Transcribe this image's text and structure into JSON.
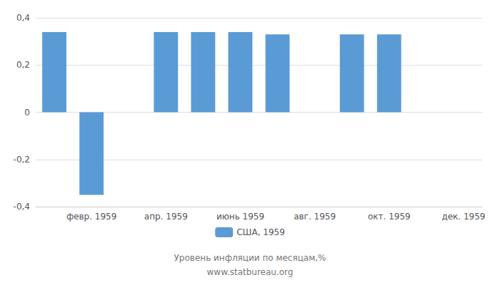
{
  "chart_data": {
    "type": "bar",
    "categories": [
      null,
      "февр. 1959",
      null,
      "апр. 1959",
      null,
      "июнь 1959",
      null,
      "авг. 1959",
      null,
      "окт. 1959",
      null,
      "дек. 1959"
    ],
    "series": [
      {
        "name": "США, 1959",
        "color": "#5B9BD5",
        "values": [
          0.34,
          -0.35,
          0.0,
          0.34,
          0.34,
          0.34,
          0.33,
          0.0,
          0.33,
          0.33,
          0.0,
          0.0
        ]
      }
    ],
    "ylim": [
      -0.4,
      0.4
    ],
    "yticks": [
      {
        "value": -0.4,
        "label": "-0,4"
      },
      {
        "value": -0.2,
        "label": "-0,2"
      },
      0,
      {
        "value": 0.2,
        "label": "0,2"
      },
      {
        "value": 0.4,
        "label": "0,4"
      }
    ],
    "grid": true,
    "legend": "bottom",
    "annotations": [
      "Уровень инфляции по месяцам,%",
      "www.statbureau.org"
    ]
  }
}
